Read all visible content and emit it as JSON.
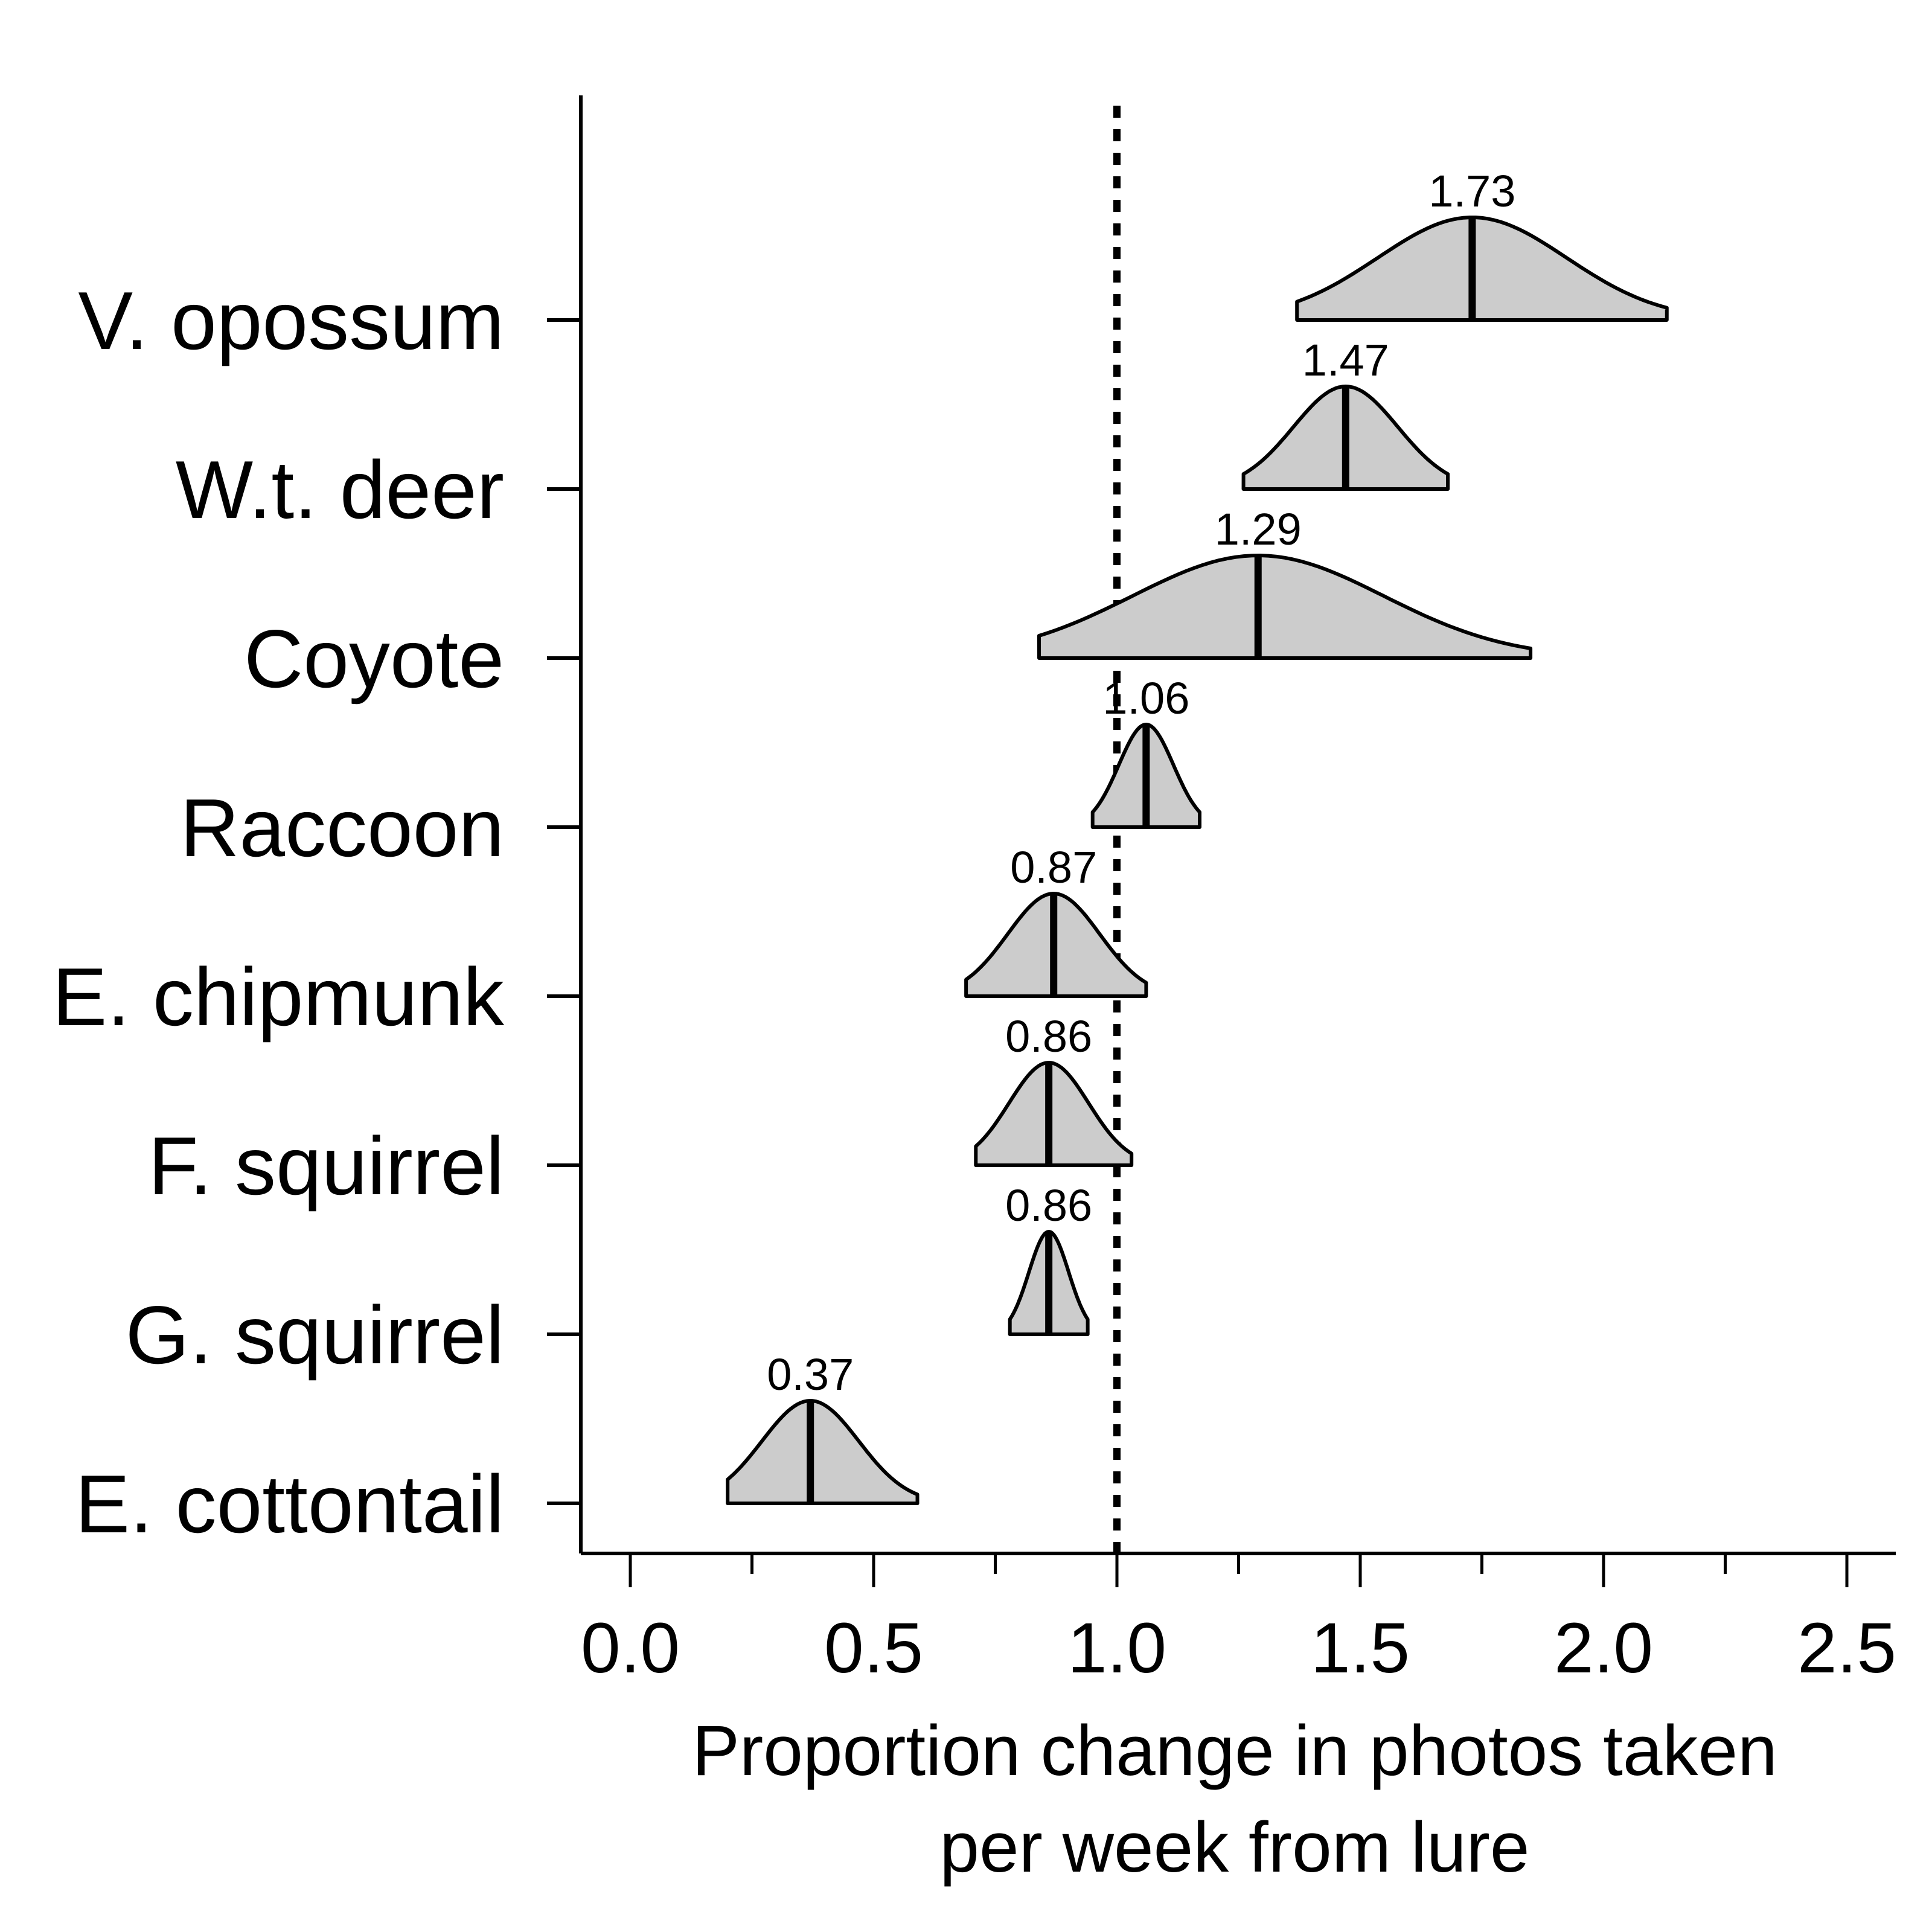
{
  "chart_data": {
    "type": "density",
    "xlabel_lines": [
      "Proportion change in photos taken",
      "per week from lure"
    ],
    "x_ticks": [
      "0.0",
      "0.5",
      "1.0",
      "1.5",
      "2.0",
      "2.5"
    ],
    "xlim": [
      -0.1,
      2.6
    ],
    "reference_line": 1.0,
    "series": [
      {
        "label": "V. opossum",
        "mean": 1.73,
        "mean_label": "1.73",
        "lower": 1.37,
        "upper": 2.13
      },
      {
        "label": "W.t. deer",
        "mean": 1.47,
        "mean_label": "1.47",
        "lower": 1.26,
        "upper": 1.68
      },
      {
        "label": "Coyote",
        "mean": 1.29,
        "mean_label": "1.29",
        "lower": 0.84,
        "upper": 1.85
      },
      {
        "label": "Raccoon",
        "mean": 1.06,
        "mean_label": "1.06",
        "lower": 0.95,
        "upper": 1.17
      },
      {
        "label": "E. chipmunk",
        "mean": 0.87,
        "mean_label": "0.87",
        "lower": 0.69,
        "upper": 1.06
      },
      {
        "label": "F. squirrel",
        "mean": 0.86,
        "mean_label": "0.86",
        "lower": 0.71,
        "upper": 1.03
      },
      {
        "label": "G. squirrel",
        "mean": 0.86,
        "mean_label": "0.86",
        "lower": 0.78,
        "upper": 0.94
      },
      {
        "label": "E. cottontail",
        "mean": 0.37,
        "mean_label": "0.37",
        "lower": 0.2,
        "upper": 0.59
      }
    ],
    "fill_color": "#cccccc",
    "line_color": "#000000"
  }
}
